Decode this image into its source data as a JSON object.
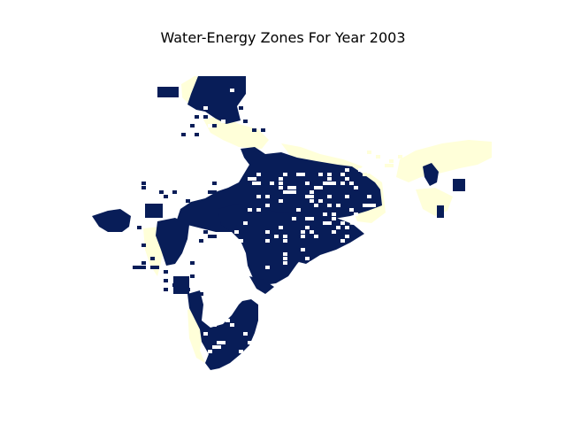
{
  "map": {
    "title": "Water-Energy Zones For Year 2003",
    "colors": {
      "zone_high": "#081d58",
      "zone_low": "#ffffd9",
      "background": "#ffffff"
    }
  }
}
